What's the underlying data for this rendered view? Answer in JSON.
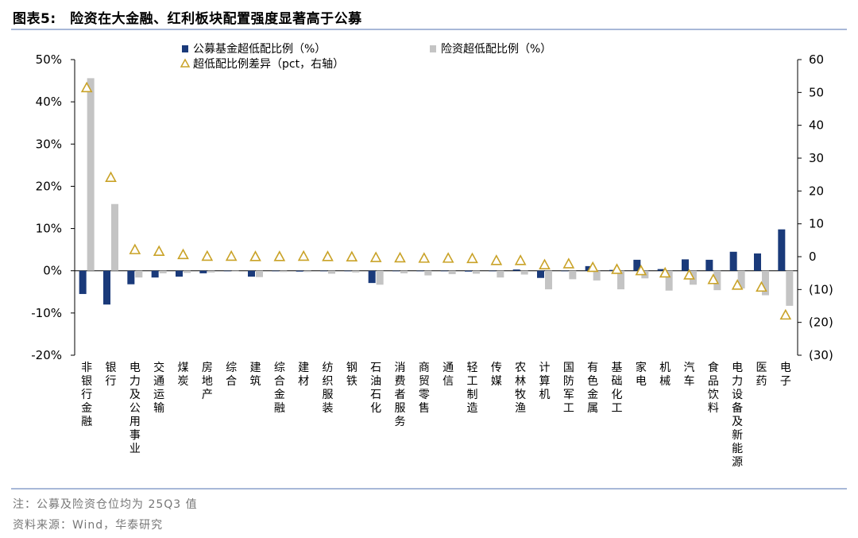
{
  "figure": {
    "title": "图表5:　险资在大金融、红利板块配置强度显著高于公募",
    "note": "注：公募及险资仓位均为 25Q3 值",
    "source": "资料来源：Wind，华泰研究"
  },
  "colors": {
    "series1": "#1a3a7a",
    "series2": "#c4c4c4",
    "series3": "#c9a227",
    "title_rule": "#a8b8d8"
  },
  "chart_data": {
    "type": "bar",
    "title": "",
    "legend_position": "top",
    "grid": false,
    "categories": [
      "非银行金融",
      "银行",
      "电力及公用事业",
      "交通运输",
      "煤炭",
      "房地产",
      "综合",
      "建筑",
      "综合金融",
      "建材",
      "纺织服装",
      "钢铁",
      "石油石化",
      "消费者服务",
      "商贸零售",
      "通信",
      "轻工制造",
      "传媒",
      "农林牧渔",
      "计算机",
      "国防军工",
      "有色金属",
      "基础化工",
      "家电",
      "机械",
      "汽车",
      "食品饮料",
      "电力设备及新能源",
      "医药",
      "电子"
    ],
    "y_left": {
      "lim": [
        -20,
        50
      ],
      "ticks": [
        "-20%",
        "-10%",
        "0%",
        "10%",
        "20%",
        "30%",
        "40%",
        "50%"
      ]
    },
    "y_right": {
      "lim": [
        -30,
        60
      ],
      "ticks": [
        "(30)",
        "(20)",
        "(10)",
        "0",
        "10",
        "20",
        "30",
        "40",
        "50",
        "60"
      ]
    },
    "series": [
      {
        "name": "公募基金超低配比例（%）",
        "kind": "bar",
        "axis": "left",
        "values": [
          -5.5,
          -8.0,
          -3.2,
          -1.6,
          -1.4,
          -0.6,
          -0.1,
          -1.4,
          -0.1,
          -0.2,
          -0.1,
          -0.1,
          -2.9,
          -0.1,
          -0.1,
          -0.1,
          -0.2,
          -0.1,
          0.3,
          -1.7,
          -0.1,
          1.1,
          0.2,
          2.6,
          0.4,
          2.7,
          2.6,
          4.5,
          4.1,
          9.8
        ]
      },
      {
        "name": "险资超低配比例（%）",
        "kind": "bar",
        "axis": "left",
        "values": [
          45.6,
          15.8,
          -1.6,
          -0.6,
          -0.5,
          -0.4,
          -0.1,
          -1.5,
          -0.3,
          -0.3,
          -0.7,
          -0.4,
          -3.3,
          -0.6,
          -1.1,
          -0.8,
          -0.7,
          -1.6,
          -0.9,
          -4.4,
          -2.0,
          -2.3,
          -4.4,
          -1.8,
          -4.7,
          -3.3,
          -4.6,
          -4.2,
          -5.8,
          -8.3
        ]
      },
      {
        "name": "超低配比例差异（pct，右轴）",
        "kind": "triangle",
        "axis": "right",
        "values": [
          51.3,
          24.0,
          2.0,
          1.5,
          0.5,
          0.0,
          0.0,
          -0.1,
          -0.1,
          0.0,
          -0.1,
          -0.2,
          -0.4,
          -0.5,
          -0.6,
          -0.6,
          -0.7,
          -1.3,
          -1.3,
          -2.6,
          -2.3,
          -3.4,
          -4.0,
          -4.4,
          -5.1,
          -5.7,
          -7.1,
          -8.8,
          -9.4,
          -17.9
        ]
      }
    ]
  }
}
